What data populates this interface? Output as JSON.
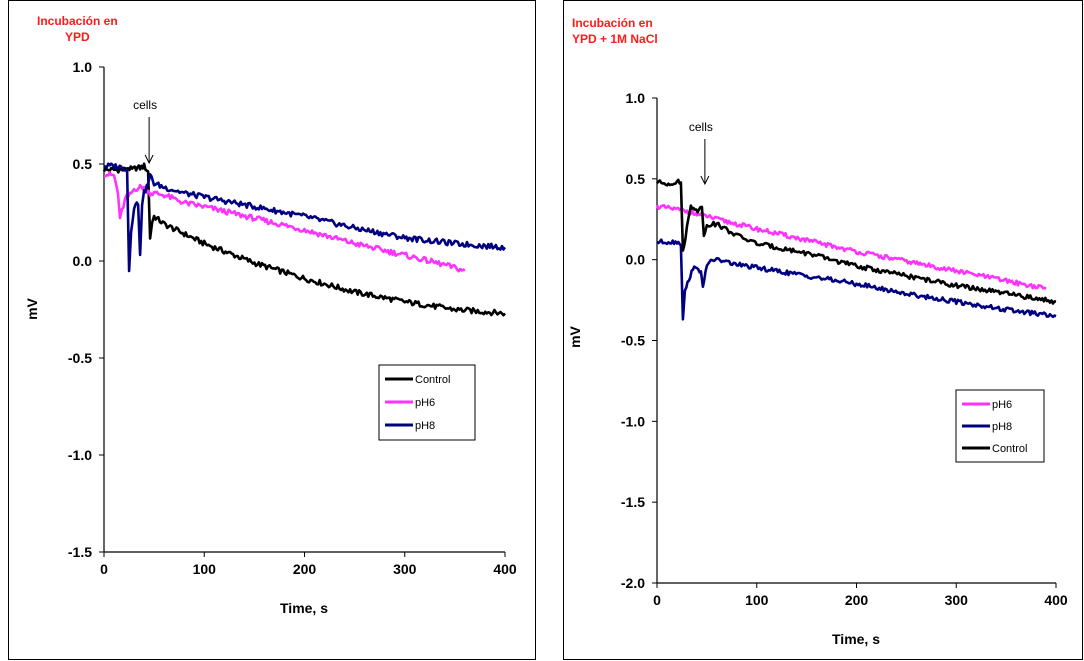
{
  "chart_data": [
    {
      "type": "line",
      "title": "Incubación en\nYPD",
      "xlabel": "Time, s",
      "ylabel": "mV",
      "xlim": [
        0,
        400
      ],
      "ylim": [
        -1.5,
        1.0
      ],
      "xticks": [
        0,
        100,
        200,
        300,
        400
      ],
      "yticks": [
        -1.5,
        -1.0,
        -0.5,
        0.0,
        0.5,
        1.0
      ],
      "xtick_labels": [
        "0",
        "100",
        "200",
        "300",
        "400"
      ],
      "ytick_labels": [
        "-1.5",
        "-1.0",
        "-0.5",
        "0.0",
        "0.5",
        "1.0"
      ],
      "annotation": {
        "text": "cells",
        "x": 45
      },
      "legend_position": "lower-right",
      "series": [
        {
          "name": "Control",
          "color": "#000000",
          "x": [
            0,
            10,
            20,
            22,
            24,
            28,
            32,
            36,
            40,
            44,
            46,
            48,
            50,
            60,
            80,
            100,
            150,
            200,
            250,
            300,
            350,
            400
          ],
          "y": [
            0.47,
            0.47,
            0.47,
            0.48,
            0.48,
            0.47,
            0.48,
            0.48,
            0.49,
            0.46,
            0.12,
            0.2,
            0.23,
            0.19,
            0.14,
            0.09,
            -0.01,
            -0.09,
            -0.16,
            -0.21,
            -0.25,
            -0.27
          ]
        },
        {
          "name": "pH6",
          "color": "#ff33ff",
          "x": [
            0,
            10,
            14,
            16,
            18,
            22,
            26,
            30,
            36,
            40,
            46,
            50,
            60,
            80,
            100,
            150,
            200,
            250,
            300,
            340,
            360
          ],
          "y": [
            0.45,
            0.44,
            0.35,
            0.21,
            0.26,
            0.33,
            0.34,
            0.37,
            0.38,
            0.38,
            0.35,
            0.35,
            0.34,
            0.3,
            0.28,
            0.22,
            0.16,
            0.09,
            0.03,
            -0.02,
            -0.05
          ]
        },
        {
          "name": "pH8",
          "color": "#000080",
          "x": [
            0,
            10,
            20,
            23,
            25,
            27,
            30,
            34,
            36,
            38,
            40,
            44,
            46,
            50,
            60,
            80,
            100,
            150,
            200,
            250,
            300,
            350,
            400
          ],
          "y": [
            0.49,
            0.49,
            0.48,
            0.47,
            -0.05,
            0.16,
            0.28,
            0.3,
            0.04,
            0.3,
            0.35,
            0.4,
            0.44,
            0.4,
            0.38,
            0.35,
            0.33,
            0.28,
            0.23,
            0.17,
            0.12,
            0.09,
            0.07
          ]
        }
      ]
    },
    {
      "type": "line",
      "title": "Incubación en\nYPD + 1M NaCl",
      "xlabel": "Time, s",
      "ylabel": "mV",
      "xlim": [
        0,
        400
      ],
      "ylim": [
        -2.0,
        1.0
      ],
      "xticks": [
        0,
        100,
        200,
        300,
        400
      ],
      "yticks": [
        -2.0,
        -1.5,
        -1.0,
        -0.5,
        0.0,
        0.5,
        1.0
      ],
      "xtick_labels": [
        "0",
        "100",
        "200",
        "300",
        "400"
      ],
      "ytick_labels": [
        "-2.0",
        "-1.5",
        "-1.0",
        "-0.5",
        "0.0",
        "0.5",
        "1.0"
      ],
      "annotation": {
        "text": "cells",
        "x": 48
      },
      "legend_position": "lower-right",
      "series": [
        {
          "name": "pH6",
          "color": "#ff33ff",
          "x": [
            0,
            10,
            20,
            30,
            40,
            50,
            60,
            80,
            100,
            150,
            200,
            250,
            300,
            350,
            390
          ],
          "y": [
            0.33,
            0.32,
            0.31,
            0.3,
            0.28,
            0.27,
            0.25,
            0.22,
            0.19,
            0.12,
            0.05,
            -0.01,
            -0.07,
            -0.13,
            -0.18
          ]
        },
        {
          "name": "pH8",
          "color": "#000080",
          "x": [
            0,
            10,
            20,
            24,
            26,
            28,
            32,
            36,
            40,
            44,
            46,
            50,
            52,
            54,
            60,
            80,
            100,
            150,
            200,
            250,
            300,
            350,
            400
          ],
          "y": [
            0.11,
            0.11,
            0.11,
            0.1,
            -0.36,
            -0.2,
            -0.12,
            -0.05,
            -0.06,
            -0.07,
            -0.16,
            -0.05,
            -0.02,
            0.0,
            0.0,
            -0.03,
            -0.05,
            -0.1,
            -0.15,
            -0.21,
            -0.26,
            -0.31,
            -0.35
          ]
        },
        {
          "name": "Control",
          "color": "#000000",
          "x": [
            0,
            10,
            20,
            24,
            26,
            30,
            34,
            38,
            42,
            45,
            47,
            50,
            55,
            60,
            80,
            100,
            150,
            200,
            250,
            300,
            350,
            400
          ],
          "y": [
            0.48,
            0.47,
            0.48,
            0.48,
            0.05,
            0.2,
            0.33,
            0.32,
            0.3,
            0.34,
            0.14,
            0.22,
            0.22,
            0.22,
            0.15,
            0.1,
            0.04,
            -0.04,
            -0.1,
            -0.16,
            -0.21,
            -0.26
          ]
        }
      ]
    }
  ]
}
